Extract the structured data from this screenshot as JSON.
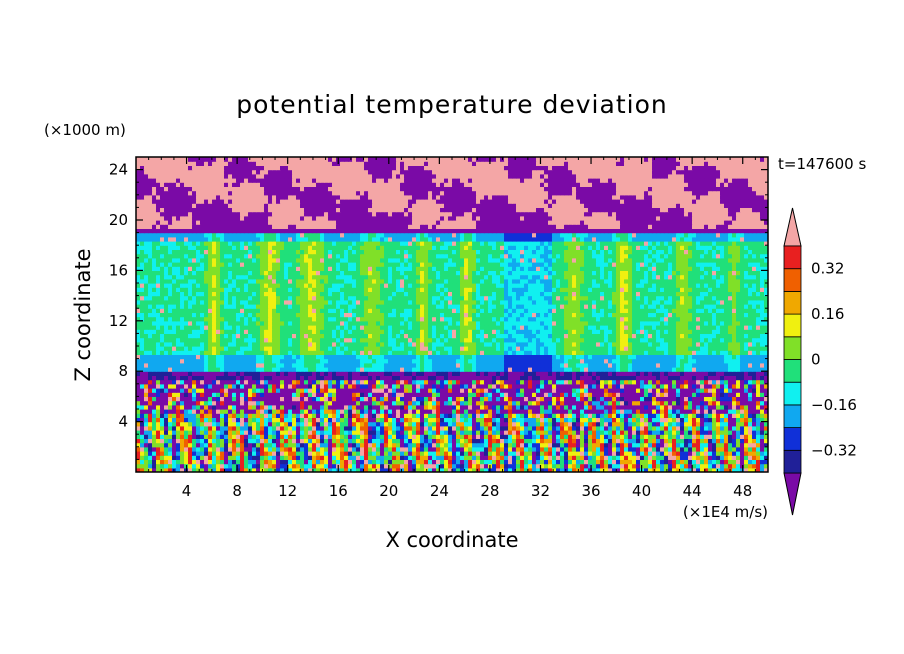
{
  "chart_data": {
    "type": "heatmap",
    "title": "potential temperature deviation",
    "xlabel": "X coordinate",
    "ylabel": "Z coordinate",
    "x_unit": "(×1E4 m/s)",
    "y_unit": "(×1000 m)",
    "time_label": "t=147600 s",
    "xlim": [
      0,
      50
    ],
    "ylim": [
      0,
      25
    ],
    "x_ticks": [
      "4",
      "8",
      "12",
      "16",
      "20",
      "24",
      "28",
      "32",
      "36",
      "40",
      "44",
      "48"
    ],
    "x_tick_values": [
      4,
      8,
      12,
      16,
      20,
      24,
      28,
      32,
      36,
      40,
      44,
      48
    ],
    "y_ticks": [
      "4",
      "8",
      "12",
      "16",
      "20",
      "24"
    ],
    "y_tick_values": [
      4,
      8,
      12,
      16,
      20,
      24
    ],
    "colorbar": {
      "tick_labels": [
        "0.32",
        "0.16",
        "0",
        "−0.16",
        "−0.32"
      ],
      "tick_values": [
        0.32,
        0.16,
        0,
        -0.16,
        -0.32
      ],
      "levels": [
        -0.4,
        -0.32,
        -0.24,
        -0.16,
        -0.08,
        0,
        0.08,
        0.16,
        0.24,
        0.32,
        0.4
      ],
      "colors": [
        "#7a0aa6",
        "#202098",
        "#1030d8",
        "#10a8f0",
        "#10f0f0",
        "#20e07a",
        "#80e028",
        "#f0f010",
        "#f0a800",
        "#f06000",
        "#e82020",
        "#f4a6a6"
      ],
      "extend": "both"
    },
    "regions": [
      {
        "z_range": [
          19,
          25
        ],
        "description_colors": [
          "#f4a6a6",
          "#7a0aa6"
        ]
      },
      {
        "z_range": [
          8,
          19
        ],
        "description_colors": [
          "#20e07a",
          "#10f0f0",
          "#80e028",
          "#f0f010"
        ]
      },
      {
        "z_range": [
          0,
          8
        ],
        "description_colors": [
          "#7a0aa6",
          "#10a8f0",
          "#80e028",
          "#e82020",
          "#f4a6a6"
        ]
      }
    ],
    "grid": false,
    "legend": "colorbar-right"
  }
}
